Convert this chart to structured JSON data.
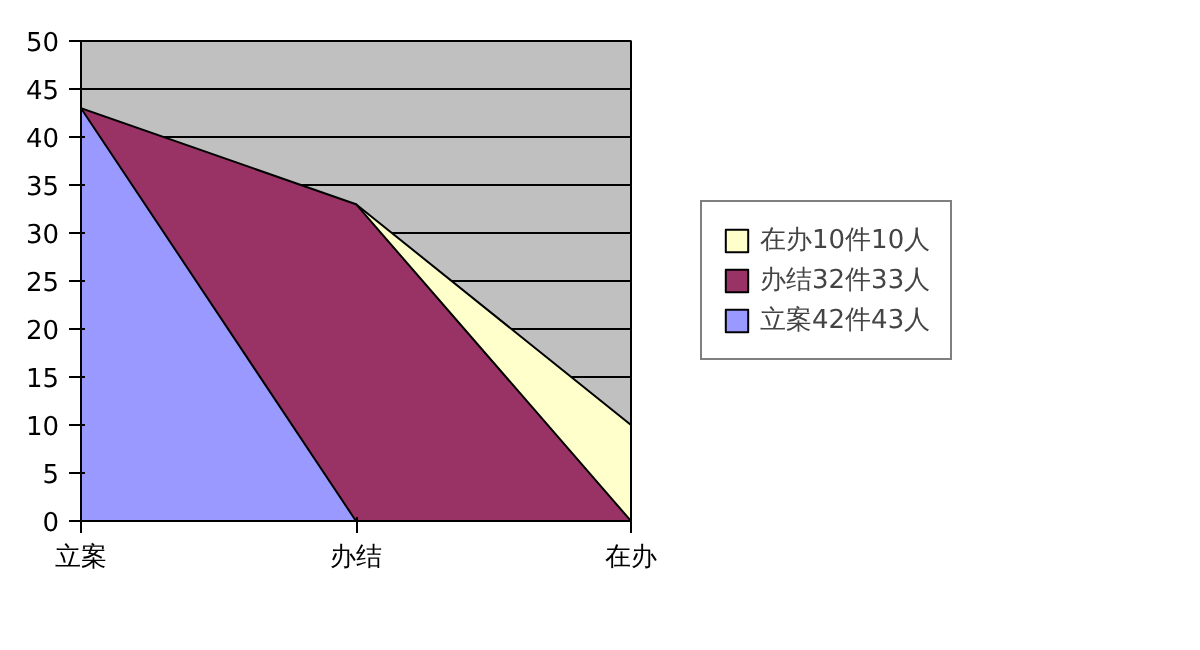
{
  "chart_data": {
    "type": "area",
    "categories": [
      "立案",
      "办结",
      "在办"
    ],
    "series": [
      {
        "name": "在办10件10人",
        "color": "#ffffcc",
        "values": [
          null,
          33,
          10
        ]
      },
      {
        "name": "办结32件33人",
        "color": "#993366",
        "values": [
          43,
          33,
          0
        ]
      },
      {
        "name": "立案42件43人",
        "color": "#9999ff",
        "values": [
          43,
          0,
          null
        ]
      }
    ],
    "ylim": [
      0,
      50
    ],
    "yticks": [
      0,
      5,
      10,
      15,
      20,
      25,
      30,
      35,
      40,
      45,
      50
    ],
    "grid": "y",
    "legend": "right"
  }
}
